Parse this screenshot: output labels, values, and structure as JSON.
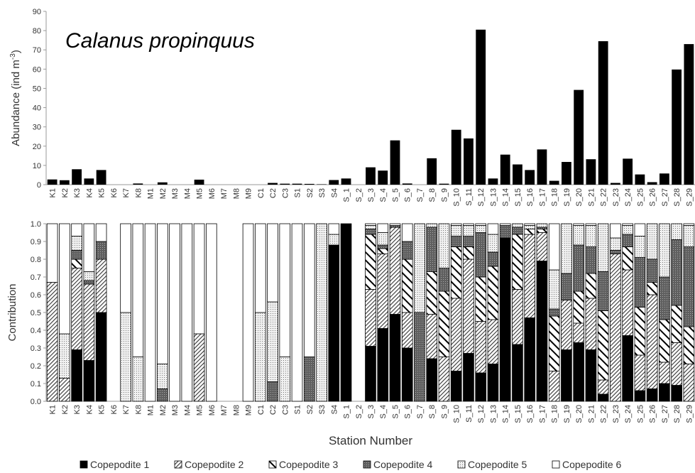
{
  "chart_data": [
    {
      "type": "bar",
      "title": "Calanus propinquus",
      "ylabel": "Abundance (ind m",
      "ylabel_sup": "-3",
      "ylabel_end": ")",
      "color": "#000000",
      "categories": [
        "K1",
        "K2",
        "K3",
        "K4",
        "K5",
        "K6",
        "K7",
        "K8",
        "M1",
        "M2",
        "M3",
        "M4",
        "M5",
        "M6",
        "M7",
        "M8",
        "M9",
        "C1",
        "C2",
        "C3",
        "S1",
        "S2",
        "S3",
        "S4",
        "S_1",
        "S_2",
        "S_3",
        "S_4",
        "S_5",
        "S_6",
        "S_7",
        "S_8",
        "S_9",
        "S_10",
        "S_11",
        "S_12",
        "S_13",
        "S_14",
        "S_15",
        "S_16",
        "S_17",
        "S_18",
        "S_19",
        "S_20",
        "S_21",
        "S_22",
        "S_23",
        "S_24",
        "S_25",
        "S_26",
        "S_27",
        "S_28",
        "S_29"
      ],
      "values": [
        2.7,
        2.3,
        8,
        3.2,
        7.6,
        0,
        0,
        0.6,
        0,
        1.2,
        0,
        0,
        2.6,
        0,
        0,
        0,
        0,
        0,
        0.9,
        0.5,
        0.5,
        0.4,
        0.2,
        2.4,
        3.2,
        0,
        9,
        7.3,
        23,
        0.6,
        0,
        13.7,
        0.5,
        28.5,
        24,
        80.5,
        3.2,
        15.6,
        10.5,
        7.6,
        18.3,
        2,
        11.8,
        49.2,
        13.2,
        74.5,
        0.9,
        13.5,
        5.3,
        1.3,
        5.8,
        59.8,
        73
      ],
      "ylim": [
        0,
        90
      ],
      "yticks": [
        0,
        10,
        20,
        30,
        40,
        50,
        60,
        70,
        80,
        90
      ]
    },
    {
      "type": "stacked_bar",
      "ylabel": "Contribution",
      "xlabel": "Station Number",
      "categories": [
        "K1",
        "K2",
        "K3",
        "K4",
        "K5",
        "K6",
        "K7",
        "K8",
        "M1",
        "M2",
        "M3",
        "M4",
        "M5",
        "M6",
        "M7",
        "M8",
        "M9",
        "C1",
        "C2",
        "C3",
        "S1",
        "S2",
        "S3",
        "S4",
        "S_1",
        "S_2",
        "S_3",
        "S_4",
        "S_5",
        "S_6",
        "S_7",
        "S_8",
        "S_9",
        "S_10",
        "S_11",
        "S_12",
        "S_13",
        "S_14",
        "S_15",
        "S_16",
        "S_17",
        "S_18",
        "S_19",
        "S_20",
        "S_21",
        "S_22",
        "S_23",
        "S_24",
        "S_25",
        "S_26",
        "S_27",
        "S_28",
        "S_29"
      ],
      "series": [
        {
          "name": "Copepodite 1",
          "color": "#000000",
          "pattern": "solid",
          "values": [
            0,
            0,
            0.29,
            0.23,
            0.5,
            0,
            0,
            0,
            0,
            0,
            0,
            0,
            0,
            0,
            0,
            0,
            0,
            0,
            0,
            0,
            0,
            0,
            0,
            0.88,
            1,
            0,
            0.31,
            0.41,
            0.49,
            0.3,
            0,
            0.24,
            0,
            0.17,
            0.27,
            0.16,
            0.21,
            0.92,
            0.32,
            0.47,
            0.79,
            0,
            0.29,
            0.33,
            0.29,
            0.04,
            0,
            0.37,
            0.06,
            0.07,
            0.1,
            0.09,
            0
          ]
        },
        {
          "name": "Copepodite 2",
          "color": "#000000",
          "pattern": "hatch-dense",
          "values": [
            0.67,
            0.13,
            0.46,
            0.43,
            0.3,
            0,
            0,
            0,
            0,
            0,
            0,
            0,
            0.38,
            0,
            0,
            0,
            0,
            0,
            0,
            0,
            0,
            0,
            0,
            0,
            0,
            0,
            0.32,
            0.42,
            0.49,
            0.2,
            0,
            0.25,
            0.25,
            0.41,
            0.53,
            0.29,
            0.25,
            0,
            0.31,
            0.47,
            0.16,
            0.17,
            0.28,
            0.11,
            0.29,
            0.08,
            0.83,
            0.37,
            0.2,
            0.53,
            0.12,
            0.24,
            0.21
          ]
        },
        {
          "name": "Copepodite 3",
          "color": "#000000",
          "pattern": "hatch-wide",
          "values": [
            0,
            0,
            0.05,
            0,
            0,
            0,
            0,
            0,
            0,
            0,
            0,
            0,
            0,
            0,
            0,
            0,
            0,
            0,
            0,
            0,
            0,
            0,
            0,
            0,
            0,
            0,
            0.31,
            0.03,
            0,
            0.3,
            0,
            0.24,
            0.37,
            0.29,
            0.07,
            0.25,
            0.3,
            0,
            0.31,
            0.03,
            0.02,
            0.31,
            0,
            0.18,
            0.14,
            0.39,
            0,
            0.13,
            0.27,
            0.07,
            0.24,
            0.21,
            0.21
          ]
        },
        {
          "name": "Copepodite 4",
          "color": "#6e6e6e",
          "pattern": "dots-dark",
          "values": [
            0,
            0,
            0.05,
            0.02,
            0.1,
            0,
            0,
            0,
            0,
            0.07,
            0,
            0,
            0,
            0,
            0,
            0,
            0,
            0,
            0.11,
            0,
            0,
            0.25,
            0,
            0,
            0,
            0,
            0.03,
            0.02,
            0.01,
            0.1,
            0.5,
            0.25,
            0.13,
            0.06,
            0.06,
            0.25,
            0.08,
            0.07,
            0.04,
            0,
            0.01,
            0.04,
            0.15,
            0.26,
            0.15,
            0.22,
            0.02,
            0.07,
            0.28,
            0.13,
            0.24,
            0.37,
            0.45
          ]
        },
        {
          "name": "Copepodite 5",
          "color": "#bdbdbd",
          "pattern": "dots-light",
          "values": [
            0,
            0.25,
            0.08,
            0.05,
            0,
            0,
            0.5,
            0.25,
            0,
            0.14,
            0,
            0,
            0,
            0,
            0,
            0,
            0,
            0.5,
            0.45,
            0.25,
            0,
            0,
            1,
            0.06,
            0,
            0,
            0.02,
            0.07,
            0,
            0,
            0.5,
            0.02,
            0.25,
            0.06,
            0.06,
            0.04,
            0.1,
            0,
            0.02,
            0.02,
            0.02,
            0.22,
            0.28,
            0.11,
            0.12,
            0.27,
            0.07,
            0.05,
            0.12,
            0.2,
            0.3,
            0.09,
            0.12
          ]
        },
        {
          "name": "Copepodite 6",
          "color": "#ffffff",
          "pattern": "none",
          "values": [
            0.33,
            0.62,
            0.07,
            0.27,
            0.1,
            0,
            0.5,
            0.75,
            1,
            0.79,
            1,
            1,
            0.62,
            1,
            0,
            0,
            1,
            0.5,
            0.44,
            0.75,
            1,
            0.75,
            0,
            0.06,
            0,
            0,
            0.01,
            0.05,
            0.01,
            0.1,
            0,
            0,
            0,
            0.01,
            0.01,
            0.01,
            0.06,
            0.01,
            0,
            0.01,
            0,
            0.26,
            0,
            0.01,
            0.01,
            0,
            0.08,
            0.01,
            0.07,
            0,
            0,
            0,
            0.01
          ]
        }
      ],
      "ylim": [
        0,
        1
      ],
      "yticks": [
        {
          "value": 0,
          "label": "0.0"
        },
        {
          "value": 0.1,
          "label": "0.1"
        },
        {
          "value": 0.2,
          "label": "0.2"
        },
        {
          "value": 0.3,
          "label": "0.3"
        },
        {
          "value": 0.4,
          "label": "0.4"
        },
        {
          "value": 0.5,
          "label": "0.5"
        },
        {
          "value": 0.6,
          "label": "0.6"
        },
        {
          "value": 0.7,
          "label": "0.7"
        },
        {
          "value": 0.8,
          "label": "0.8"
        },
        {
          "value": 0.9,
          "label": "0.9"
        },
        {
          "value": 1,
          "label": "1.0"
        }
      ],
      "legend": "bottom"
    }
  ]
}
